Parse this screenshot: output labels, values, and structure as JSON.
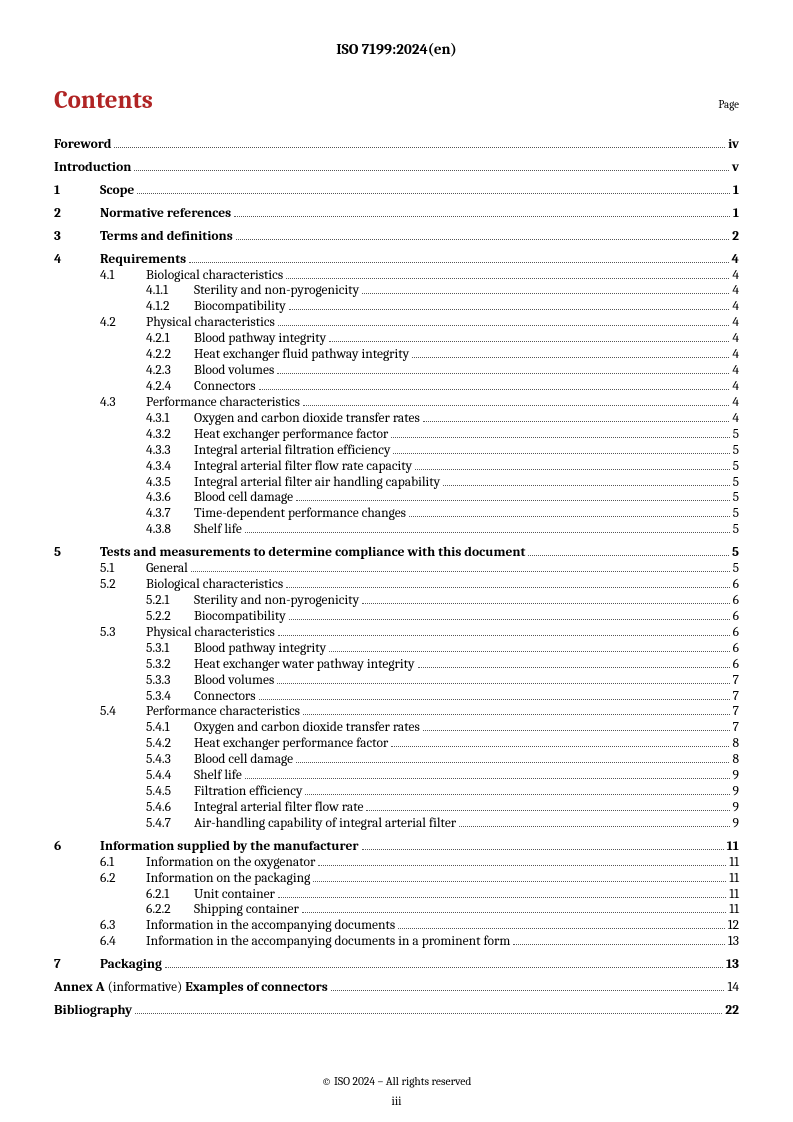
{
  "header": "ISO 7199:2024(en)",
  "contents_label": "Contents",
  "page_label": "Page",
  "footer": "© ISO 2024 – All rights reserved",
  "page_number": "iii",
  "toc": [
    {
      "level": "lvl0",
      "num": "",
      "title": "Foreword",
      "page": "iv"
    },
    {
      "level": "lvl0",
      "num": "",
      "title": "Introduction",
      "page": "v"
    },
    {
      "level": "lvl1",
      "num": "1",
      "title": "Scope",
      "page": "1"
    },
    {
      "level": "lvl1",
      "num": "2",
      "title": "Normative references",
      "page": "1"
    },
    {
      "level": "lvl1",
      "num": "3",
      "title": "Terms and definitions",
      "page": "2"
    },
    {
      "level": "lvl1",
      "num": "4",
      "title": "Requirements",
      "page": "4"
    },
    {
      "level": "lvl2",
      "num": "4.1",
      "title": "Biological characteristics",
      "page": "4"
    },
    {
      "level": "lvl3",
      "num": "4.1.1",
      "title": "Sterility and non-pyrogenicity",
      "page": "4"
    },
    {
      "level": "lvl3",
      "num": "4.1.2",
      "title": "Biocompatibility",
      "page": "4"
    },
    {
      "level": "lvl2",
      "num": "4.2",
      "title": "Physical characteristics",
      "page": "4"
    },
    {
      "level": "lvl3",
      "num": "4.2.1",
      "title": "Blood pathway integrity",
      "page": "4"
    },
    {
      "level": "lvl3",
      "num": "4.2.2",
      "title": "Heat exchanger fluid pathway integrity",
      "page": "4"
    },
    {
      "level": "lvl3",
      "num": "4.2.3",
      "title": "Blood volumes",
      "page": "4"
    },
    {
      "level": "lvl3",
      "num": "4.2.4",
      "title": "Connectors",
      "page": "4"
    },
    {
      "level": "lvl2",
      "num": "4.3",
      "title": "Performance characteristics",
      "page": "4"
    },
    {
      "level": "lvl3",
      "num": "4.3.1",
      "title": "Oxygen and carbon dioxide transfer rates",
      "page": "4"
    },
    {
      "level": "lvl3",
      "num": "4.3.2",
      "title": "Heat exchanger performance factor",
      "page": "5"
    },
    {
      "level": "lvl3",
      "num": "4.3.3",
      "title": "Integral arterial filtration efficiency",
      "page": "5"
    },
    {
      "level": "lvl3",
      "num": "4.3.4",
      "title": "Integral arterial filter flow rate capacity",
      "page": "5"
    },
    {
      "level": "lvl3",
      "num": "4.3.5",
      "title": "Integral arterial filter air handling capability",
      "page": "5"
    },
    {
      "level": "lvl3",
      "num": "4.3.6",
      "title": "Blood cell damage",
      "page": "5"
    },
    {
      "level": "lvl3",
      "num": "4.3.7",
      "title": "Time-dependent performance changes",
      "page": "5"
    },
    {
      "level": "lvl3",
      "num": "4.3.8",
      "title": "Shelf life",
      "page": "5"
    },
    {
      "level": "lvl1",
      "num": "5",
      "title": "Tests and measurements to determine compliance with this document",
      "page": "5"
    },
    {
      "level": "lvl2",
      "num": "5.1",
      "title": "General",
      "page": "5"
    },
    {
      "level": "lvl2",
      "num": "5.2",
      "title": "Biological characteristics",
      "page": "6"
    },
    {
      "level": "lvl3",
      "num": "5.2.1",
      "title": "Sterility and non-pyrogenicity",
      "page": "6"
    },
    {
      "level": "lvl3",
      "num": "5.2.2",
      "title": "Biocompatibility",
      "page": "6"
    },
    {
      "level": "lvl2",
      "num": "5.3",
      "title": "Physical characteristics",
      "page": "6"
    },
    {
      "level": "lvl3",
      "num": "5.3.1",
      "title": "Blood pathway integrity",
      "page": "6"
    },
    {
      "level": "lvl3",
      "num": "5.3.2",
      "title": "Heat exchanger water pathway integrity",
      "page": "6"
    },
    {
      "level": "lvl3",
      "num": "5.3.3",
      "title": "Blood volumes",
      "page": "7"
    },
    {
      "level": "lvl3",
      "num": "5.3.4",
      "title": "Connectors",
      "page": "7"
    },
    {
      "level": "lvl2",
      "num": "5.4",
      "title": "Performance characteristics",
      "page": "7"
    },
    {
      "level": "lvl3",
      "num": "5.4.1",
      "title": "Oxygen and carbon dioxide transfer rates",
      "page": "7"
    },
    {
      "level": "lvl3",
      "num": "5.4.2",
      "title": "Heat exchanger performance factor",
      "page": "8"
    },
    {
      "level": "lvl3",
      "num": "5.4.3",
      "title": "Blood cell damage",
      "page": "8"
    },
    {
      "level": "lvl3",
      "num": "5.4.4",
      "title": "Shelf life",
      "page": "9"
    },
    {
      "level": "lvl3",
      "num": "5.4.5",
      "title": "Filtration efficiency",
      "page": "9"
    },
    {
      "level": "lvl3",
      "num": "5.4.6",
      "title": "Integral arterial filter flow rate",
      "page": "9"
    },
    {
      "level": "lvl3",
      "num": "5.4.7",
      "title": "Air-handling capability of integral arterial filter",
      "page": "9"
    },
    {
      "level": "lvl1",
      "num": "6",
      "title": "Information supplied by the manufacturer",
      "page": "11"
    },
    {
      "level": "lvl2",
      "num": "6.1",
      "title": "Information on the oxygenator",
      "page": "11"
    },
    {
      "level": "lvl2",
      "num": "6.2",
      "title": "Information on the packaging",
      "page": "11"
    },
    {
      "level": "lvl3",
      "num": "6.2.1",
      "title": "Unit container",
      "page": "11"
    },
    {
      "level": "lvl3",
      "num": "6.2.2",
      "title": "Shipping container",
      "page": "11"
    },
    {
      "level": "lvl2",
      "num": "6.3",
      "title": "Information in the accompanying documents",
      "page": "12"
    },
    {
      "level": "lvl2",
      "num": "6.4",
      "title": "Information in the accompanying documents in a prominent form",
      "page": "13"
    },
    {
      "level": "lvl1",
      "num": "7",
      "title": "Packaging",
      "page": "13"
    },
    {
      "level": "annex",
      "num": "",
      "title_parts": [
        "Annex A ",
        "(informative)  ",
        "Examples of connectors"
      ],
      "page": "14"
    },
    {
      "level": "biblio",
      "num": "",
      "title": "Bibliography",
      "page": "22"
    }
  ]
}
